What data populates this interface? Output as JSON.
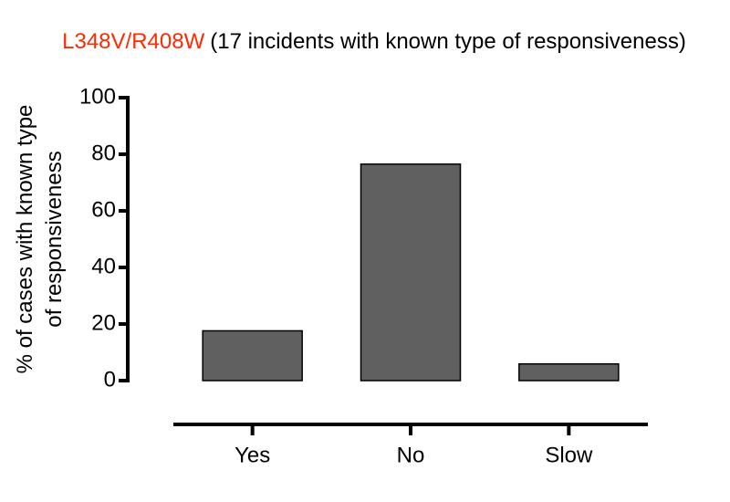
{
  "chart_data": {
    "type": "bar",
    "title_parts": [
      {
        "text": "L348V/R408W",
        "color": "#ff2a00"
      },
      {
        "text": "(17 incidents with known type of responsiveness)",
        "color": "#000000"
      }
    ],
    "y_label": [
      "% of cases with  known type",
      "of responsiveness"
    ],
    "categories": [
      "Yes",
      "No",
      "Slow"
    ],
    "values": [
      17.6,
      76.5,
      5.9
    ],
    "color": "#606060",
    "ylim": [
      0,
      100
    ],
    "yticks": [
      0,
      20,
      40,
      60,
      80,
      100
    ]
  }
}
